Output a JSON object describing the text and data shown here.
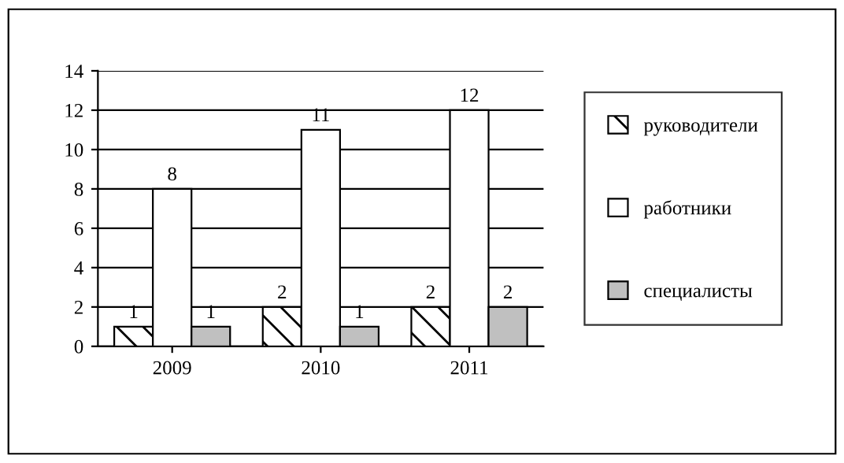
{
  "chart_data": {
    "type": "bar",
    "categories": [
      "2009",
      "2010",
      "2011"
    ],
    "series": [
      {
        "name": "руководители",
        "color": "#000000",
        "values": [
          1,
          2,
          2
        ]
      },
      {
        "name": "работники",
        "color": "#ffffff",
        "values": [
          8,
          11,
          12
        ]
      },
      {
        "name": "специалисты",
        "color": "#c0c0c0",
        "values": [
          1,
          1,
          2
        ]
      }
    ],
    "ylim": [
      0,
      14
    ],
    "yticks": [
      0,
      2,
      4,
      6,
      8,
      10,
      12,
      14
    ],
    "grid": "y",
    "legend": "right",
    "data_labels": true
  }
}
